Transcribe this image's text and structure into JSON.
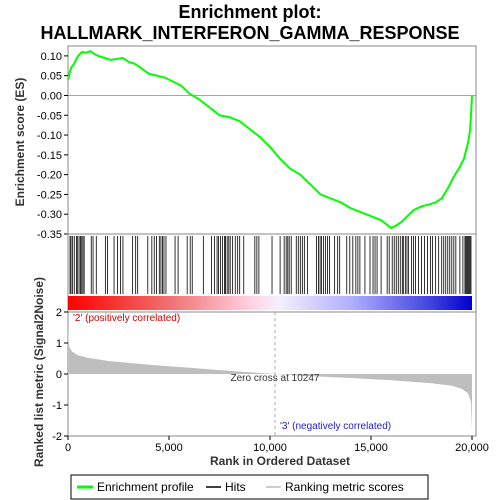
{
  "chart_data": {
    "type": "line",
    "title_line1": "Enrichment plot:",
    "title_line2": "HALLMARK_INTERFERON_GAMMA_RESPONSE",
    "top_panel": {
      "ylabel": "Enrichment score (ES)",
      "ylim": [
        -0.35,
        0.125
      ],
      "yticks": [
        "0.10",
        "0.05",
        "0.00",
        "-0.05",
        "-0.10",
        "-0.15",
        "-0.20",
        "-0.25",
        "-0.30",
        "-0.35"
      ],
      "ytick_values": [
        0.1,
        0.05,
        0.0,
        -0.05,
        -0.1,
        -0.15,
        -0.2,
        -0.25,
        -0.3,
        -0.35
      ],
      "xlim": [
        0,
        20000
      ],
      "series": [
        {
          "name": "Enrichment profile",
          "color": "#00ff00",
          "x": [
            0,
            150,
            300,
            500,
            700,
            900,
            1100,
            1300,
            1500,
            1800,
            2100,
            2400,
            2700,
            3000,
            3300,
            3600,
            4000,
            4400,
            4800,
            5200,
            5600,
            6000,
            6500,
            7000,
            7500,
            8000,
            8500,
            9000,
            9500,
            10000,
            10500,
            11000,
            11500,
            12000,
            12500,
            13000,
            13500,
            14000,
            14500,
            15000,
            15500,
            16000,
            16200,
            16500,
            16800,
            17100,
            17500,
            17900,
            18200,
            18500,
            18800,
            19100,
            19400,
            19600,
            19800,
            19900,
            19950,
            20000
          ],
          "y": [
            0.04,
            0.07,
            0.08,
            0.1,
            0.11,
            0.108,
            0.112,
            0.105,
            0.1,
            0.095,
            0.09,
            0.092,
            0.095,
            0.085,
            0.08,
            0.07,
            0.055,
            0.05,
            0.045,
            0.035,
            0.025,
            0.005,
            -0.01,
            -0.03,
            -0.05,
            -0.055,
            -0.065,
            -0.085,
            -0.105,
            -0.13,
            -0.16,
            -0.185,
            -0.2,
            -0.225,
            -0.25,
            -0.26,
            -0.27,
            -0.285,
            -0.295,
            -0.305,
            -0.315,
            -0.335,
            -0.33,
            -0.32,
            -0.305,
            -0.29,
            -0.28,
            -0.275,
            -0.27,
            -0.26,
            -0.235,
            -0.205,
            -0.18,
            -0.16,
            -0.12,
            -0.09,
            -0.05,
            0.0
          ]
        }
      ]
    },
    "bottom_panel": {
      "ylabel": "Ranked list metric (Signal2Noise)",
      "xlabel": "Rank in Ordered Dataset",
      "ylim": [
        -2,
        2
      ],
      "yticks": [
        "2",
        "1",
        "0",
        "-1",
        "-2"
      ],
      "ytick_values": [
        2,
        1,
        0,
        -1,
        -2
      ],
      "xticks": [
        "0",
        "5,000",
        "10,000",
        "15,000",
        "20,000"
      ],
      "xtick_values": [
        0,
        5000,
        10000,
        15000,
        20000
      ],
      "metric_x": [
        0,
        50,
        200,
        500,
        1000,
        2000,
        4000,
        6000,
        8000,
        10247,
        12000,
        14000,
        16000,
        18000,
        19000,
        19500,
        19800,
        19950,
        20000
      ],
      "metric_y": [
        1.5,
        0.9,
        0.72,
        0.6,
        0.52,
        0.42,
        0.3,
        0.2,
        0.1,
        0.0,
        -0.07,
        -0.13,
        -0.2,
        -0.3,
        -0.38,
        -0.48,
        -0.62,
        -0.9,
        -1.8
      ],
      "zero_cross_label": "Zero cross at 10247",
      "zero_cross": 10247,
      "pos_label": "'2' (positively correlated)",
      "neg_label": "'3' (negatively correlated)"
    },
    "hits": [
      100,
      150,
      230,
      310,
      420,
      480,
      550,
      620,
      680,
      740,
      800,
      1150,
      1240,
      1400,
      1850,
      1950,
      2280,
      2450,
      2600,
      2720,
      3200,
      3350,
      3450,
      3950,
      4150,
      4270,
      4380,
      4520,
      4600,
      4680,
      4750,
      4850,
      5300,
      5450,
      5900,
      6050,
      6150,
      6700,
      7100,
      7250,
      7380,
      7450,
      7550,
      7650,
      7750,
      7800,
      7880,
      7960,
      8030,
      8150,
      8280,
      8400,
      8500,
      8700,
      9250,
      9350,
      9450,
      10100,
      10500,
      10700,
      10800,
      10880,
      10950,
      11050,
      11300,
      11400,
      11500,
      11600,
      11700,
      11850,
      12300,
      12400,
      12480,
      12550,
      12650,
      12750,
      12850,
      12950,
      13200,
      13350,
      13450,
      13800,
      13950,
      14100,
      14250,
      14350,
      14450,
      14700,
      14950,
      15100,
      15200,
      15300,
      15500,
      15800,
      15900,
      16050,
      16150,
      16250,
      16350,
      16450,
      16550,
      16600,
      16700,
      16780,
      16850,
      17000,
      17100,
      17200,
      17350,
      17500,
      17650,
      17800,
      17950,
      18050,
      18200,
      18350,
      18500,
      18600,
      18700,
      18800,
      18900,
      19000,
      19100,
      19200,
      19400,
      19550,
      19650,
      19700,
      19750,
      19800,
      19850,
      19900,
      19950
    ],
    "legend": {
      "items": [
        {
          "label": "Enrichment profile",
          "color": "#00ff00"
        },
        {
          "label": "Hits",
          "color": "#000000"
        },
        {
          "label": "Ranking metric scores",
          "color": "#bebebe"
        }
      ],
      "placement": "bottom"
    }
  }
}
